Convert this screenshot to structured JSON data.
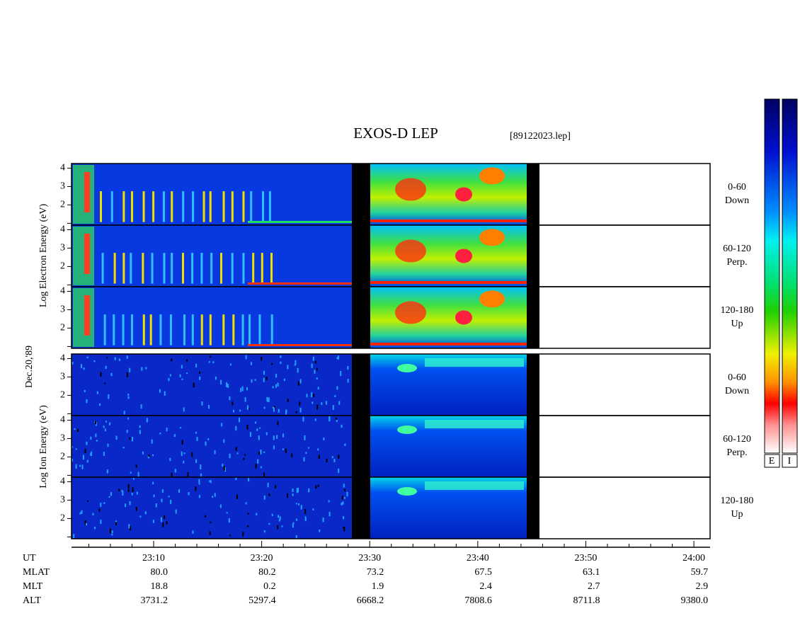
{
  "title": "EXOS-D LEP",
  "filename": "[89122023.lep]",
  "date_label": "Dec.20,'89",
  "electron_axis_label": "Log Electron Energy (eV)",
  "ion_axis_label": "Log Ion Energy (eV)",
  "energy_axis": {
    "ylim": [
      0.9,
      4.25
    ],
    "yticks": [
      2,
      3,
      4
    ],
    "minor_yticks": [
      1
    ]
  },
  "electron_panels": [
    {
      "range": "0-60",
      "direction": "Down"
    },
    {
      "range": "60-120",
      "direction": "Perp."
    },
    {
      "range": "120-180",
      "direction": "Up"
    }
  ],
  "ion_panels": [
    {
      "range": "0-60",
      "direction": "Down"
    },
    {
      "range": "60-120",
      "direction": "Perp."
    },
    {
      "range": "120-180",
      "direction": "Up"
    }
  ],
  "time_axis": {
    "label": "UT",
    "xlim": [
      2.4,
      61.5
    ],
    "xticks": [
      {
        "value": 10,
        "label": "23:10"
      },
      {
        "value": 20,
        "label": "23:20"
      },
      {
        "value": 30,
        "label": "23:30"
      },
      {
        "value": 40,
        "label": "23:40"
      },
      {
        "value": 50,
        "label": "23:50"
      },
      {
        "value": 60,
        "label": "24:00"
      }
    ],
    "minor_xticks": [
      4,
      6,
      8,
      12,
      14,
      16,
      18,
      22,
      24,
      26,
      28,
      32,
      34,
      36,
      38,
      42,
      44,
      46,
      48,
      52,
      54,
      56,
      58
    ]
  },
  "orbit_rows": [
    {
      "label": "MLAT",
      "values": [
        "80.0",
        "80.2",
        "73.2",
        "67.5",
        "63.1",
        "59.7"
      ]
    },
    {
      "label": "MLT",
      "values": [
        "18.8",
        "0.2",
        "1.9",
        "2.4",
        "2.7",
        "2.9"
      ]
    },
    {
      "label": "ALT",
      "values": [
        "3731.2",
        "5297.4",
        "6668.2",
        "7808.6",
        "8711.8",
        "9380.0"
      ]
    }
  ],
  "colorbar_labels": [
    "E",
    "I"
  ]
}
